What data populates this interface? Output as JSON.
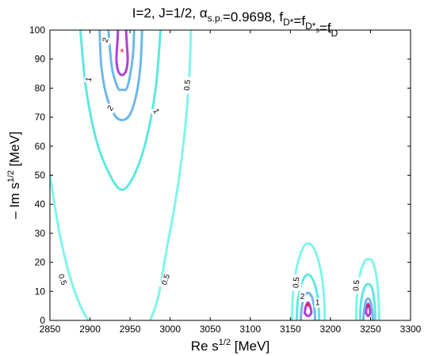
{
  "chart_data": {
    "type": "contour",
    "title": {
      "segments": [
        {
          "t": "I=2, J=1/2,  "
        },
        {
          "t": "α",
          "italic": false
        },
        {
          "t": "s.p.",
          "sub": true
        },
        {
          "t": "=0.9698, f"
        },
        {
          "t": "D*",
          "sub": true
        },
        {
          "t": "=f"
        },
        {
          "t": "D*",
          "sub": true
        },
        {
          "t": "s",
          "subsub": true
        },
        {
          "t": "=f"
        },
        {
          "t": "D",
          "sub": true
        }
      ]
    },
    "xlabel": {
      "main": "Re s",
      "sup": "1/2",
      "unit": " [MeV]"
    },
    "ylabel": {
      "main": "– Im s",
      "sup": "1/2",
      "unit": " [MeV]"
    },
    "xlim": [
      2850,
      3300
    ],
    "ylim": [
      0,
      100
    ],
    "xticks": [
      "2850",
      "2900",
      "2950",
      "3000",
      "3050",
      "3100",
      "3150",
      "3200",
      "3250",
      "3300"
    ],
    "yticks": [
      "0",
      "10",
      "20",
      "30",
      "40",
      "50",
      "60",
      "70",
      "80",
      "90",
      "100"
    ],
    "grid": false,
    "level_colors": {
      "0.5": "#7ff5ea",
      "1": "#5ee8e0",
      "2": "#6fb7ea",
      "5": "#b23fd6"
    },
    "poles": [
      {
        "x": 2940,
        "y": 92.5,
        "marker": "*",
        "color": "#ff0000"
      },
      {
        "x": 3172,
        "y": 4.8,
        "marker": "*",
        "color": "#ff0000"
      },
      {
        "x": 3247,
        "y": 4.5,
        "marker": "*",
        "color": "#ff0000"
      }
    ],
    "contours": [
      {
        "level": "0.5",
        "points": [
          [
            2850,
            50
          ],
          [
            2862,
            30
          ],
          [
            2875,
            15
          ],
          [
            2888,
            5
          ],
          [
            2898,
            0
          ]
        ]
      },
      {
        "level": "0.5",
        "points": [
          [
            2975,
            0
          ],
          [
            2985,
            8
          ],
          [
            2996,
            25
          ],
          [
            3006,
            40
          ],
          [
            3014,
            55
          ],
          [
            3020,
            70
          ],
          [
            3024,
            85
          ],
          [
            3026,
            100
          ]
        ]
      },
      {
        "level": "1",
        "points": [
          [
            2888,
            100
          ],
          [
            2895,
            80
          ],
          [
            2908,
            62
          ],
          [
            2925,
            50
          ],
          [
            2940,
            45
          ],
          [
            2955,
            50
          ],
          [
            2970,
            62
          ],
          [
            2982,
            80
          ],
          [
            2988,
            100
          ]
        ]
      },
      {
        "level": "2",
        "points": [
          [
            2912,
            100
          ],
          [
            2914,
            88
          ],
          [
            2920,
            78
          ],
          [
            2930,
            71
          ],
          [
            2940,
            69
          ],
          [
            2950,
            71
          ],
          [
            2958,
            78
          ],
          [
            2963,
            88
          ],
          [
            2965,
            100
          ]
        ]
      },
      {
        "level": "2",
        "points": [
          [
            2923,
            100
          ],
          [
            2925,
            93
          ],
          [
            2928,
            86
          ],
          [
            2935,
            80
          ],
          [
            2940,
            79.5
          ],
          [
            2946,
            80
          ],
          [
            2951,
            86
          ],
          [
            2954,
            93
          ],
          [
            2955,
            100
          ]
        ]
      },
      {
        "level": "5",
        "points": [
          [
            2935,
            100
          ],
          [
            2934,
            95
          ],
          [
            2933,
            90
          ],
          [
            2935,
            86
          ],
          [
            2940,
            84.5
          ],
          [
            2945,
            86
          ],
          [
            2947,
            90
          ],
          [
            2946,
            95
          ],
          [
            2945,
            100
          ]
        ]
      },
      {
        "level": "0.5",
        "points": [
          [
            3152,
            0
          ],
          [
            3153,
            8
          ],
          [
            3157,
            17
          ],
          [
            3165,
            24.5
          ],
          [
            3172,
            26.5
          ],
          [
            3180,
            24.5
          ],
          [
            3188,
            17
          ],
          [
            3192,
            8
          ],
          [
            3193,
            0
          ]
        ]
      },
      {
        "level": "1",
        "points": [
          [
            3158,
            0
          ],
          [
            3159,
            6
          ],
          [
            3163,
            12
          ],
          [
            3168,
            15
          ],
          [
            3172,
            15.8
          ],
          [
            3176,
            15
          ],
          [
            3181,
            12
          ],
          [
            3185,
            6
          ],
          [
            3186,
            0
          ]
        ]
      },
      {
        "level": "2",
        "points": [
          [
            3163,
            0
          ],
          [
            3164,
            4
          ],
          [
            3167,
            8
          ],
          [
            3172,
            9.5
          ],
          [
            3177,
            8
          ],
          [
            3180,
            4
          ],
          [
            3181,
            0
          ]
        ]
      },
      {
        "level": "5",
        "points": [
          [
            3168,
            2.5
          ],
          [
            3169,
            4.5
          ],
          [
            3172,
            6.2
          ],
          [
            3175,
            4.5
          ],
          [
            3176,
            2.5
          ],
          [
            3172,
            1.5
          ],
          [
            3168,
            2.5
          ]
        ]
      },
      {
        "level": "0.5",
        "points": [
          [
            3232,
            0
          ],
          [
            3233,
            8
          ],
          [
            3237,
            16
          ],
          [
            3243,
            20.5
          ],
          [
            3247,
            21
          ],
          [
            3252,
            20.5
          ],
          [
            3257,
            16
          ],
          [
            3260,
            8
          ],
          [
            3261,
            0
          ]
        ]
      },
      {
        "level": "1",
        "points": [
          [
            3237,
            0
          ],
          [
            3238,
            6
          ],
          [
            3242,
            11
          ],
          [
            3247,
            12.5
          ],
          [
            3252,
            11
          ],
          [
            3255,
            6
          ],
          [
            3256,
            0
          ]
        ]
      },
      {
        "level": "2",
        "points": [
          [
            3241,
            0
          ],
          [
            3242,
            3.5
          ],
          [
            3244,
            6.5
          ],
          [
            3247,
            7.5
          ],
          [
            3250,
            6.5
          ],
          [
            3252,
            3.5
          ],
          [
            3253,
            0
          ]
        ]
      },
      {
        "level": "5",
        "points": [
          [
            3244.5,
            2.5
          ],
          [
            3245,
            4
          ],
          [
            3247,
            5.8
          ],
          [
            3249,
            4
          ],
          [
            3249.5,
            2.5
          ],
          [
            3247,
            1.5
          ],
          [
            3244.5,
            2.5
          ]
        ]
      }
    ],
    "contour_labels": [
      {
        "text": "2",
        "x": 2920,
        "y": 96.5,
        "angle": -70
      },
      {
        "text": "1",
        "x": 2899,
        "y": 83,
        "angle": -80
      },
      {
        "text": "2",
        "x": 2926,
        "y": 73,
        "angle": -55
      },
      {
        "text": "1",
        "x": 2982,
        "y": 72,
        "angle": 65
      },
      {
        "text": "0.5",
        "x": 3022,
        "y": 81,
        "angle": -85
      },
      {
        "text": "0.5",
        "x": 2865,
        "y": 14,
        "angle": 70
      },
      {
        "text": "0.5",
        "x": 2995,
        "y": 14,
        "angle": -70
      },
      {
        "text": "0.5",
        "x": 3158,
        "y": 13,
        "angle": -85
      },
      {
        "text": "1",
        "x": 3184,
        "y": 6,
        "angle": 0
      },
      {
        "text": "2",
        "x": 3165,
        "y": 8,
        "angle": 0
      },
      {
        "text": "0.5",
        "x": 3233,
        "y": 12,
        "angle": -85
      }
    ]
  }
}
